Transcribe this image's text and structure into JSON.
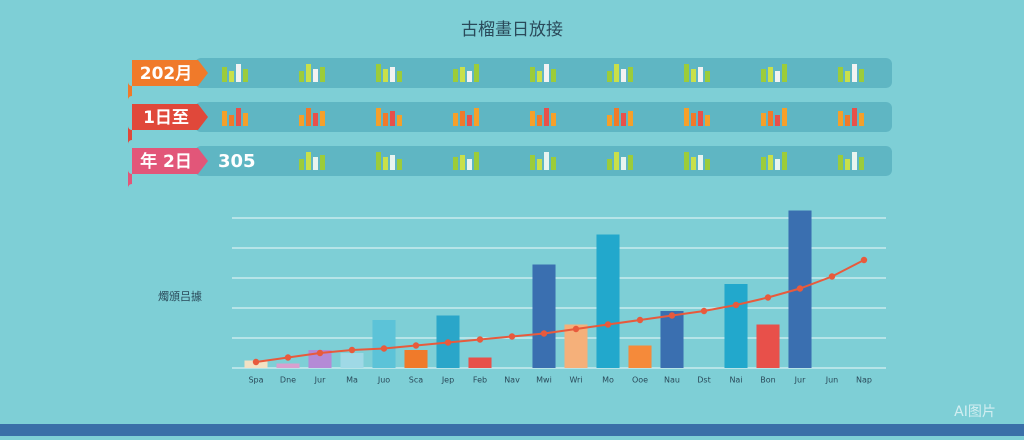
{
  "header": {
    "title": "古榴畫日放接",
    "watermark": "AI图片"
  },
  "banners": [
    {
      "tag": "202月",
      "color": "#f07a2a"
    },
    {
      "tag": "1日至",
      "color": "#e0483a"
    },
    {
      "tag": "年 2日",
      "color": "#e25679",
      "text": "305"
    }
  ],
  "chart_data": {
    "type": "bar",
    "y_label": "燭頒吕據",
    "categories": [
      "Spa",
      "Dne",
      "Jur",
      "Ma",
      "Juo",
      "Sca",
      "Jep",
      "Feb",
      "Nav",
      "Mwi",
      "Wri",
      "Mo",
      "Ooe",
      "Nau",
      "Dst",
      "Nai",
      "Bon",
      "Jur",
      "Jun",
      "Nap"
    ],
    "values": [
      5,
      3,
      12,
      10,
      32,
      12,
      35,
      7,
      null,
      69,
      29,
      89,
      15,
      38,
      null,
      56,
      29,
      105,
      null,
      null
    ],
    "colors": [
      "#f3e1c4",
      "#d8a0cf",
      "#b48ad6",
      "#9fd9e6",
      "#5cc3d8",
      "#f07a2a",
      "#2aa6c9",
      "#e8504a",
      null,
      "#3a6fb0",
      "#f5b07a",
      "#22a8cc",
      "#f58a3a",
      "#3a6fb0",
      null,
      "#22a8cc",
      "#e8504a",
      "#3a6fb0",
      null,
      null
    ],
    "line": {
      "color": "#e85a3c",
      "values": [
        4,
        7,
        10,
        12,
        13,
        15,
        17,
        19,
        21,
        23,
        26,
        29,
        32,
        35,
        38,
        42,
        47,
        53,
        61,
        72
      ]
    },
    "ylim": [
      0,
      110
    ],
    "yticks": [
      0,
      20,
      40,
      60,
      80,
      100
    ],
    "grid": true
  }
}
